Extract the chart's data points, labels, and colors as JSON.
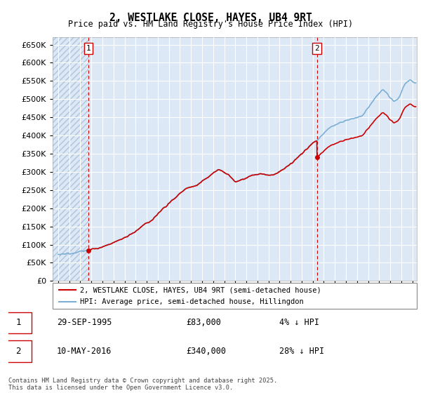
{
  "title": "2, WESTLAKE CLOSE, HAYES, UB4 9RT",
  "subtitle": "Price paid vs. HM Land Registry's House Price Index (HPI)",
  "legend_entry1": "2, WESTLAKE CLOSE, HAYES, UB4 9RT (semi-detached house)",
  "legend_entry2": "HPI: Average price, semi-detached house, Hillingdon",
  "purchase1_date": "29-SEP-1995",
  "purchase1_price": 83000,
  "purchase1_label": "4% ↓ HPI",
  "purchase2_date": "10-MAY-2016",
  "purchase2_price": 340000,
  "purchase2_label": "28% ↓ HPI",
  "footnote": "Contains HM Land Registry data © Crown copyright and database right 2025.\nThis data is licensed under the Open Government Licence v3.0.",
  "hpi_color": "#7bafd4",
  "price_color": "#cc0000",
  "marker_color": "#cc0000",
  "vline_color": "#cc0000",
  "bg_color": "#dce8f5",
  "hatch_color": "#c8d8e8",
  "grid_color": "#ffffff",
  "ylim": [
    0,
    670000
  ],
  "ytick_step": 50000,
  "xstart": 1993,
  "xend": 2025,
  "t1": 1995.75,
  "t2": 2016.37
}
